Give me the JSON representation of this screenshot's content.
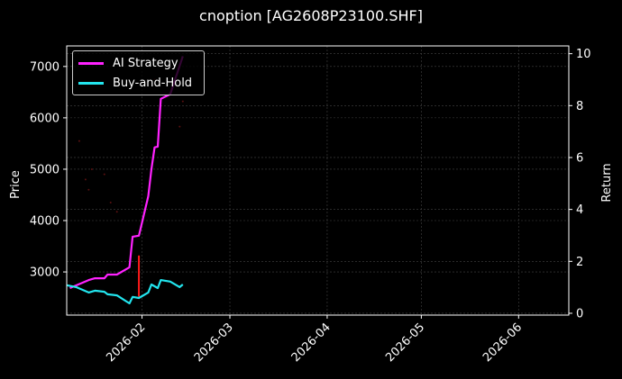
{
  "title": "cnoption [AG2608P23100.SHF]",
  "colors": {
    "background": "#000000",
    "ai_strategy": "#ff22ff",
    "buy_and_hold": "#22e5ee",
    "signal": "#ff1a1a",
    "grid": "#444444",
    "axis": "#ffffff"
  },
  "legend": {
    "items": [
      {
        "label": "AI Strategy",
        "color": "#ff22ff"
      },
      {
        "label": "Buy-and-Hold",
        "color": "#22e5ee"
      }
    ]
  },
  "chart_data": {
    "type": "line",
    "title": "cnoption [AG2608P23100.SHF]",
    "xlabel": "",
    "ylabel": "Price",
    "ylabel_right": "Return",
    "x_range": [
      "2026-01-08",
      "2026-06-17"
    ],
    "ylim": [
      2160,
      7400
    ],
    "ylim_right": [
      -0.07,
      10.3
    ],
    "x_ticks": [
      "2026-02",
      "2026-03",
      "2026-04",
      "2026-05",
      "2026-06"
    ],
    "y_ticks": [
      3000,
      4000,
      5000,
      6000,
      7000
    ],
    "y_ticks_right": [
      0,
      2,
      4,
      6,
      8,
      10
    ],
    "grid": true,
    "legend_position": "upper left",
    "series": [
      {
        "name": "AI Strategy",
        "axis": "right",
        "color": "#ff22ff",
        "x": [
          "2026-01-09",
          "2026-01-15",
          "2026-01-17",
          "2026-01-20",
          "2026-01-21",
          "2026-01-24",
          "2026-01-28",
          "2026-01-29",
          "2026-01-31",
          "2026-02-03",
          "2026-02-04",
          "2026-02-05",
          "2026-02-06",
          "2026-02-07",
          "2026-02-10",
          "2026-02-14"
        ],
        "values": [
          0.97,
          1.28,
          1.35,
          1.35,
          1.49,
          1.49,
          1.77,
          2.95,
          2.99,
          4.51,
          5.56,
          6.39,
          6.42,
          8.26,
          8.44,
          9.9
        ]
      },
      {
        "name": "Buy-and-Hold",
        "axis": "right",
        "color": "#22e5ee",
        "x": [
          "2026-01-08",
          "2026-01-11",
          "2026-01-15",
          "2026-01-17",
          "2026-01-20",
          "2026-01-21",
          "2026-01-24",
          "2026-01-28",
          "2026-01-29",
          "2026-01-31",
          "2026-02-03",
          "2026-02-04",
          "2026-02-06",
          "2026-02-07",
          "2026-02-10",
          "2026-02-13",
          "2026-02-14"
        ],
        "values": [
          1.08,
          1.01,
          0.8,
          0.87,
          0.83,
          0.73,
          0.69,
          0.38,
          0.63,
          0.59,
          0.8,
          1.11,
          0.97,
          1.28,
          1.22,
          1.01,
          1.11
        ]
      },
      {
        "name": "Signal",
        "axis": "left",
        "type": "vline",
        "color": "#ff1a1a",
        "x": "2026-01-31",
        "range": [
          2520,
          3320
        ]
      },
      {
        "name": "Price markers",
        "axis": "left",
        "type": "scatter",
        "color": "#5a1010",
        "points": [
          {
            "x": "2026-01-12",
            "y": 5550
          },
          {
            "x": "2026-01-14",
            "y": 4800
          },
          {
            "x": "2026-01-15",
            "y": 4600
          },
          {
            "x": "2026-01-16",
            "y": 5000
          },
          {
            "x": "2026-01-20",
            "y": 4900
          },
          {
            "x": "2026-01-22",
            "y": 4350
          },
          {
            "x": "2026-01-24",
            "y": 4170
          },
          {
            "x": "2026-02-05",
            "y": 6750
          },
          {
            "x": "2026-02-13",
            "y": 5830
          },
          {
            "x": "2026-02-14",
            "y": 6320
          }
        ]
      }
    ]
  }
}
